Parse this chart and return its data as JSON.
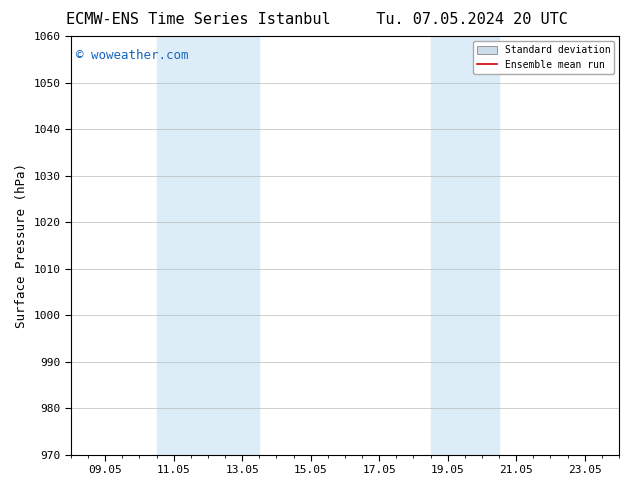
{
  "title_left": "ECMW-ENS Time Series Istanbul",
  "title_right": "Tu. 07.05.2024 20 UTC",
  "ylabel": "Surface Pressure (hPa)",
  "xlabel": "",
  "ylim": [
    970,
    1060
  ],
  "yticks": [
    970,
    980,
    990,
    1000,
    1010,
    1020,
    1030,
    1040,
    1050,
    1060
  ],
  "xtick_labels": [
    "09.05",
    "11.05",
    "13.05",
    "15.05",
    "17.05",
    "19.05",
    "21.05",
    "23.05"
  ],
  "xtick_positions": [
    1,
    3,
    5,
    7,
    9,
    11,
    13,
    15
  ],
  "xmin": 0,
  "xmax": 16,
  "shaded_regions": [
    {
      "x_start": 2.5,
      "x_end": 5.5,
      "color": "#ddedf8"
    },
    {
      "x_start": 10.5,
      "x_end": 12.5,
      "color": "#ddedf8"
    }
  ],
  "watermark_text": "© woweather.com",
  "watermark_color": "#1565c0",
  "watermark_fontsize": 9,
  "legend_std_color": "#cddcea",
  "legend_mean_color": "#cc0000",
  "background_color": "#ffffff",
  "plot_bg_color": "#ffffff",
  "title_fontsize": 11,
  "ylabel_fontsize": 9,
  "tick_fontsize": 8,
  "grid_color": "#bbbbbb",
  "grid_linewidth": 0.5,
  "border_color": "#000000",
  "font_family": "monospace"
}
